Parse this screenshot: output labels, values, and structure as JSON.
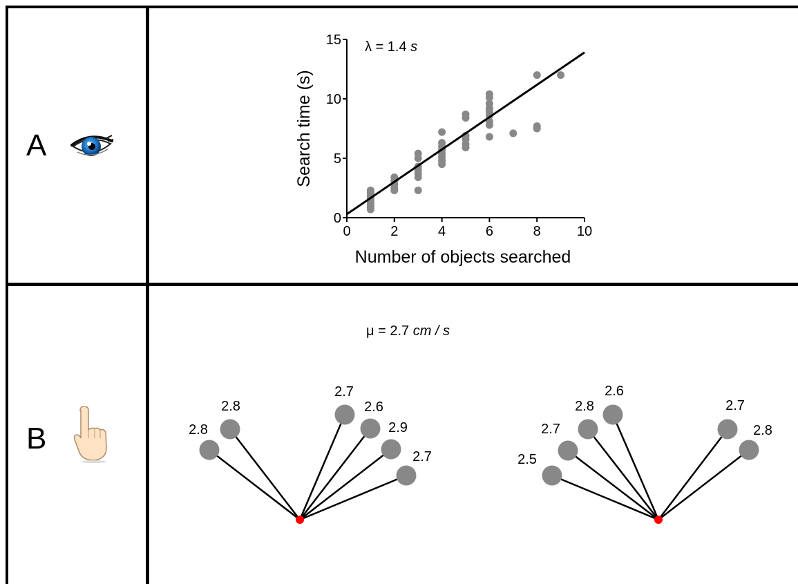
{
  "rows": {
    "a": {
      "label": "A",
      "icon": "eye-icon"
    },
    "b": {
      "label": "B",
      "icon": "pointing-hand-icon"
    }
  },
  "chart_data": {
    "type": "scatter",
    "title": "",
    "annotation": {
      "symbol": "λ",
      "eq": "=",
      "value": "1.4",
      "unit": "s"
    },
    "xlabel": "Number of objects searched",
    "ylabel": "Search time (s)",
    "xlim": [
      0,
      10
    ],
    "ylim": [
      0,
      15
    ],
    "xticks": [
      0,
      2,
      4,
      6,
      8,
      10
    ],
    "yticks": [
      0,
      5,
      10,
      15
    ],
    "grid": false,
    "point_color": "#888888",
    "line_color": "#000000",
    "fit_line": {
      "x": [
        0,
        10
      ],
      "y": [
        0.3,
        13.9
      ]
    },
    "points": [
      [
        1,
        0.7
      ],
      [
        1,
        0.9
      ],
      [
        1,
        1.1
      ],
      [
        1,
        1.3
      ],
      [
        1,
        1.5
      ],
      [
        1,
        1.7
      ],
      [
        1,
        1.9
      ],
      [
        1,
        2.1
      ],
      [
        1,
        2.3
      ],
      [
        2,
        2.3
      ],
      [
        2,
        2.5
      ],
      [
        2,
        2.8
      ],
      [
        2,
        3.1
      ],
      [
        2,
        3.4
      ],
      [
        3,
        2.3
      ],
      [
        3,
        3.4
      ],
      [
        3,
        3.7
      ],
      [
        3,
        4.0
      ],
      [
        3,
        4.3
      ],
      [
        3,
        5.0
      ],
      [
        3,
        5.4
      ],
      [
        4,
        4.5
      ],
      [
        4,
        4.8
      ],
      [
        4,
        5.1
      ],
      [
        4,
        5.4
      ],
      [
        4,
        5.7
      ],
      [
        4,
        6.0
      ],
      [
        4,
        6.3
      ],
      [
        4,
        7.2
      ],
      [
        5,
        5.9
      ],
      [
        5,
        6.2
      ],
      [
        5,
        6.6
      ],
      [
        5,
        6.9
      ],
      [
        5,
        8.4
      ],
      [
        5,
        8.7
      ],
      [
        6,
        6.8
      ],
      [
        6,
        7.8
      ],
      [
        6,
        8.1
      ],
      [
        6,
        8.6
      ],
      [
        6,
        8.9
      ],
      [
        6,
        9.2
      ],
      [
        6,
        9.6
      ],
      [
        6,
        10.1
      ],
      [
        6,
        10.4
      ],
      [
        7,
        7.1
      ],
      [
        8,
        7.5
      ],
      [
        8,
        7.7
      ],
      [
        8,
        12.0
      ],
      [
        9,
        12.0
      ]
    ]
  },
  "panel_b": {
    "annotation": {
      "symbol": "μ",
      "eq": "=",
      "value": "2.7",
      "unit": "cm / s"
    },
    "node_color": "#888888",
    "origin_color": "#ff0000",
    "group1_labels": [
      "2.8",
      "2.8",
      "2.7",
      "2.6",
      "2.9",
      "2.7"
    ],
    "group2_labels": [
      "2.5",
      "2.7",
      "2.8",
      "2.6",
      "2.7",
      "2.8"
    ]
  }
}
